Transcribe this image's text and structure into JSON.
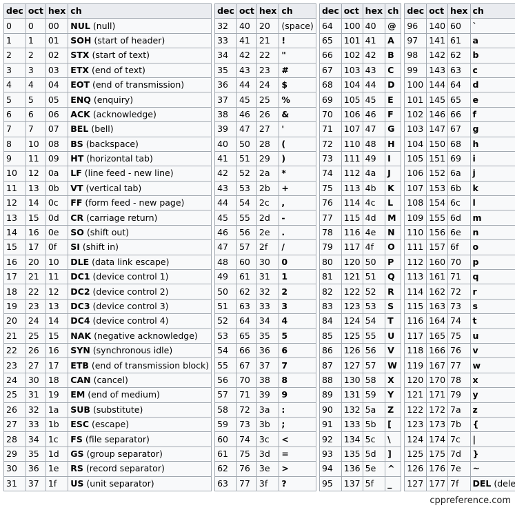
{
  "headers": [
    "dec",
    "oct",
    "hex",
    "ch"
  ],
  "footer": "cppreference.com",
  "groups": [
    [
      [
        "0",
        "0",
        "00",
        "NUL",
        "(null)"
      ],
      [
        "1",
        "1",
        "01",
        "SOH",
        "(start of header)"
      ],
      [
        "2",
        "2",
        "02",
        "STX",
        "(start of text)"
      ],
      [
        "3",
        "3",
        "03",
        "ETX",
        "(end of text)"
      ],
      [
        "4",
        "4",
        "04",
        "EOT",
        "(end of transmission)"
      ],
      [
        "5",
        "5",
        "05",
        "ENQ",
        "(enquiry)"
      ],
      [
        "6",
        "6",
        "06",
        "ACK",
        "(acknowledge)"
      ],
      [
        "7",
        "7",
        "07",
        "BEL",
        "(bell)"
      ],
      [
        "8",
        "10",
        "08",
        "BS",
        "(backspace)"
      ],
      [
        "9",
        "11",
        "09",
        "HT",
        "(horizontal tab)"
      ],
      [
        "10",
        "12",
        "0a",
        "LF",
        "(line feed - new line)"
      ],
      [
        "11",
        "13",
        "0b",
        "VT",
        "(vertical tab)"
      ],
      [
        "12",
        "14",
        "0c",
        "FF",
        "(form feed - new page)"
      ],
      [
        "13",
        "15",
        "0d",
        "CR",
        "(carriage return)"
      ],
      [
        "14",
        "16",
        "0e",
        "SO",
        "(shift out)"
      ],
      [
        "15",
        "17",
        "0f",
        "SI",
        "(shift in)"
      ],
      [
        "16",
        "20",
        "10",
        "DLE",
        "(data link escape)"
      ],
      [
        "17",
        "21",
        "11",
        "DC1",
        "(device control 1)"
      ],
      [
        "18",
        "22",
        "12",
        "DC2",
        "(device control 2)"
      ],
      [
        "19",
        "23",
        "13",
        "DC3",
        "(device control 3)"
      ],
      [
        "20",
        "24",
        "14",
        "DC4",
        "(device control 4)"
      ],
      [
        "21",
        "25",
        "15",
        "NAK",
        "(negative acknowledge)"
      ],
      [
        "22",
        "26",
        "16",
        "SYN",
        "(synchronous idle)"
      ],
      [
        "23",
        "27",
        "17",
        "ETB",
        "(end of transmission block)"
      ],
      [
        "24",
        "30",
        "18",
        "CAN",
        "(cancel)"
      ],
      [
        "25",
        "31",
        "19",
        "EM",
        "(end of medium)"
      ],
      [
        "26",
        "32",
        "1a",
        "SUB",
        "(substitute)"
      ],
      [
        "27",
        "33",
        "1b",
        "ESC",
        "(escape)"
      ],
      [
        "28",
        "34",
        "1c",
        "FS",
        "(file separator)"
      ],
      [
        "29",
        "35",
        "1d",
        "GS",
        "(group separator)"
      ],
      [
        "30",
        "36",
        "1e",
        "RS",
        "(record separator)"
      ],
      [
        "31",
        "37",
        "1f",
        "US",
        "(unit separator)"
      ]
    ],
    [
      [
        "32",
        "40",
        "20",
        "(space)",
        ""
      ],
      [
        "33",
        "41",
        "21",
        "!",
        ""
      ],
      [
        "34",
        "42",
        "22",
        "\"",
        ""
      ],
      [
        "35",
        "43",
        "23",
        "#",
        ""
      ],
      [
        "36",
        "44",
        "24",
        "$",
        ""
      ],
      [
        "37",
        "45",
        "25",
        "%",
        ""
      ],
      [
        "38",
        "46",
        "26",
        "&",
        ""
      ],
      [
        "39",
        "47",
        "27",
        "'",
        ""
      ],
      [
        "40",
        "50",
        "28",
        "(",
        ""
      ],
      [
        "41",
        "51",
        "29",
        ")",
        ""
      ],
      [
        "42",
        "52",
        "2a",
        "*",
        ""
      ],
      [
        "43",
        "53",
        "2b",
        "+",
        ""
      ],
      [
        "44",
        "54",
        "2c",
        ",",
        ""
      ],
      [
        "45",
        "55",
        "2d",
        "-",
        ""
      ],
      [
        "46",
        "56",
        "2e",
        ".",
        ""
      ],
      [
        "47",
        "57",
        "2f",
        "/",
        ""
      ],
      [
        "48",
        "60",
        "30",
        "0",
        ""
      ],
      [
        "49",
        "61",
        "31",
        "1",
        ""
      ],
      [
        "50",
        "62",
        "32",
        "2",
        ""
      ],
      [
        "51",
        "63",
        "33",
        "3",
        ""
      ],
      [
        "52",
        "64",
        "34",
        "4",
        ""
      ],
      [
        "53",
        "65",
        "35",
        "5",
        ""
      ],
      [
        "54",
        "66",
        "36",
        "6",
        ""
      ],
      [
        "55",
        "67",
        "37",
        "7",
        ""
      ],
      [
        "56",
        "70",
        "38",
        "8",
        ""
      ],
      [
        "57",
        "71",
        "39",
        "9",
        ""
      ],
      [
        "58",
        "72",
        "3a",
        ":",
        ""
      ],
      [
        "59",
        "73",
        "3b",
        ";",
        ""
      ],
      [
        "60",
        "74",
        "3c",
        "<",
        ""
      ],
      [
        "61",
        "75",
        "3d",
        "=",
        ""
      ],
      [
        "62",
        "76",
        "3e",
        ">",
        ""
      ],
      [
        "63",
        "77",
        "3f",
        "?",
        ""
      ]
    ],
    [
      [
        "64",
        "100",
        "40",
        "@",
        ""
      ],
      [
        "65",
        "101",
        "41",
        "A",
        ""
      ],
      [
        "66",
        "102",
        "42",
        "B",
        ""
      ],
      [
        "67",
        "103",
        "43",
        "C",
        ""
      ],
      [
        "68",
        "104",
        "44",
        "D",
        ""
      ],
      [
        "69",
        "105",
        "45",
        "E",
        ""
      ],
      [
        "70",
        "106",
        "46",
        "F",
        ""
      ],
      [
        "71",
        "107",
        "47",
        "G",
        ""
      ],
      [
        "72",
        "110",
        "48",
        "H",
        ""
      ],
      [
        "73",
        "111",
        "49",
        "I",
        ""
      ],
      [
        "74",
        "112",
        "4a",
        "J",
        ""
      ],
      [
        "75",
        "113",
        "4b",
        "K",
        ""
      ],
      [
        "76",
        "114",
        "4c",
        "L",
        ""
      ],
      [
        "77",
        "115",
        "4d",
        "M",
        ""
      ],
      [
        "78",
        "116",
        "4e",
        "N",
        ""
      ],
      [
        "79",
        "117",
        "4f",
        "O",
        ""
      ],
      [
        "80",
        "120",
        "50",
        "P",
        ""
      ],
      [
        "81",
        "121",
        "51",
        "Q",
        ""
      ],
      [
        "82",
        "122",
        "52",
        "R",
        ""
      ],
      [
        "83",
        "123",
        "53",
        "S",
        ""
      ],
      [
        "84",
        "124",
        "54",
        "T",
        ""
      ],
      [
        "85",
        "125",
        "55",
        "U",
        ""
      ],
      [
        "86",
        "126",
        "56",
        "V",
        ""
      ],
      [
        "87",
        "127",
        "57",
        "W",
        ""
      ],
      [
        "88",
        "130",
        "58",
        "X",
        ""
      ],
      [
        "89",
        "131",
        "59",
        "Y",
        ""
      ],
      [
        "90",
        "132",
        "5a",
        "Z",
        ""
      ],
      [
        "91",
        "133",
        "5b",
        "[",
        ""
      ],
      [
        "92",
        "134",
        "5c",
        "\\",
        ""
      ],
      [
        "93",
        "135",
        "5d",
        "]",
        ""
      ],
      [
        "94",
        "136",
        "5e",
        "^",
        ""
      ],
      [
        "95",
        "137",
        "5f",
        "_",
        ""
      ]
    ],
    [
      [
        "96",
        "140",
        "60",
        "`",
        ""
      ],
      [
        "97",
        "141",
        "61",
        "a",
        ""
      ],
      [
        "98",
        "142",
        "62",
        "b",
        ""
      ],
      [
        "99",
        "143",
        "63",
        "c",
        ""
      ],
      [
        "100",
        "144",
        "64",
        "d",
        ""
      ],
      [
        "101",
        "145",
        "65",
        "e",
        ""
      ],
      [
        "102",
        "146",
        "66",
        "f",
        ""
      ],
      [
        "103",
        "147",
        "67",
        "g",
        ""
      ],
      [
        "104",
        "150",
        "68",
        "h",
        ""
      ],
      [
        "105",
        "151",
        "69",
        "i",
        ""
      ],
      [
        "106",
        "152",
        "6a",
        "j",
        ""
      ],
      [
        "107",
        "153",
        "6b",
        "k",
        ""
      ],
      [
        "108",
        "154",
        "6c",
        "l",
        ""
      ],
      [
        "109",
        "155",
        "6d",
        "m",
        ""
      ],
      [
        "110",
        "156",
        "6e",
        "n",
        ""
      ],
      [
        "111",
        "157",
        "6f",
        "o",
        ""
      ],
      [
        "112",
        "160",
        "70",
        "p",
        ""
      ],
      [
        "113",
        "161",
        "71",
        "q",
        ""
      ],
      [
        "114",
        "162",
        "72",
        "r",
        ""
      ],
      [
        "115",
        "163",
        "73",
        "s",
        ""
      ],
      [
        "116",
        "164",
        "74",
        "t",
        ""
      ],
      [
        "117",
        "165",
        "75",
        "u",
        ""
      ],
      [
        "118",
        "166",
        "76",
        "v",
        ""
      ],
      [
        "119",
        "167",
        "77",
        "w",
        ""
      ],
      [
        "120",
        "170",
        "78",
        "x",
        ""
      ],
      [
        "121",
        "171",
        "79",
        "y",
        ""
      ],
      [
        "122",
        "172",
        "7a",
        "z",
        ""
      ],
      [
        "123",
        "173",
        "7b",
        "{",
        ""
      ],
      [
        "124",
        "174",
        "7c",
        "|",
        ""
      ],
      [
        "125",
        "175",
        "7d",
        "}",
        ""
      ],
      [
        "126",
        "176",
        "7e",
        "~",
        ""
      ],
      [
        "127",
        "177",
        "7f",
        "DEL",
        "(delete)"
      ]
    ]
  ]
}
